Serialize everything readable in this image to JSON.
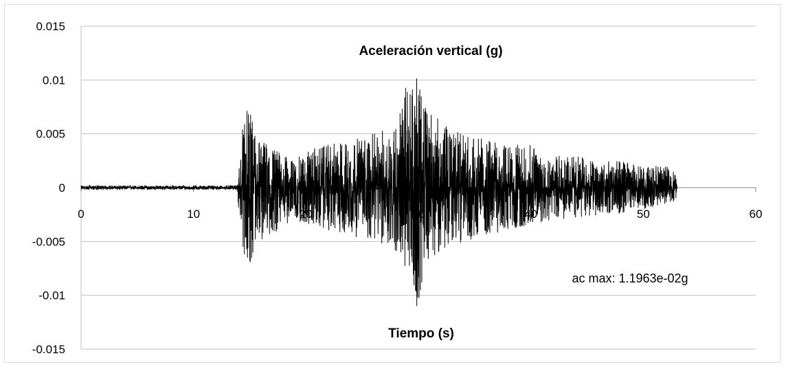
{
  "chart_data": {
    "type": "line",
    "title": "Aceleración vertical (g)",
    "xlabel": "Tiempo (s)",
    "ylabel": "",
    "xlim": [
      0,
      60
    ],
    "ylim": [
      -0.015,
      0.015
    ],
    "x_ticks": [
      0,
      10,
      20,
      30,
      40,
      50,
      60
    ],
    "x_tick_labels": [
      "0",
      "10",
      "20",
      "30",
      "40",
      "50",
      "60"
    ],
    "y_ticks": [
      0.015,
      0.01,
      0.005,
      0,
      -0.005,
      -0.01,
      -0.015
    ],
    "y_tick_labels": [
      "0.015",
      "0.01",
      "0.005",
      "0",
      "-0.005",
      "-0.01",
      "-0.015"
    ],
    "grid": "horizontal",
    "annotation": "ac max: 1.1963e-02g",
    "series": [
      {
        "color": "#000000",
        "envelope": {
          "x": [
            0,
            13.9,
            14.0,
            14.5,
            15.0,
            16,
            17,
            18,
            19,
            20,
            22,
            24,
            26,
            28,
            29,
            30,
            30.5,
            31,
            32,
            34,
            36,
            38,
            40,
            42,
            44,
            46,
            48,
            50,
            52,
            53
          ],
          "max": [
            0.0002,
            0.0002,
            0.0015,
            0.0075,
            0.007,
            0.0045,
            0.004,
            0.003,
            0.0025,
            0.0035,
            0.004,
            0.0045,
            0.005,
            0.006,
            0.01,
            0.0102,
            0.008,
            0.0075,
            0.006,
            0.005,
            0.0045,
            0.004,
            0.004,
            0.003,
            0.003,
            0.0025,
            0.0025,
            0.002,
            0.002,
            0.0015
          ],
          "min": [
            -0.0002,
            -0.0002,
            -0.002,
            -0.0065,
            -0.0072,
            -0.005,
            -0.0045,
            -0.0035,
            -0.003,
            -0.0035,
            -0.004,
            -0.0045,
            -0.005,
            -0.006,
            -0.0085,
            -0.0115,
            -0.007,
            -0.0065,
            -0.006,
            -0.005,
            -0.0045,
            -0.004,
            -0.0035,
            -0.003,
            -0.003,
            -0.0025,
            -0.0025,
            -0.002,
            -0.0015,
            -0.0012
          ]
        },
        "samples": 4200
      }
    ]
  }
}
